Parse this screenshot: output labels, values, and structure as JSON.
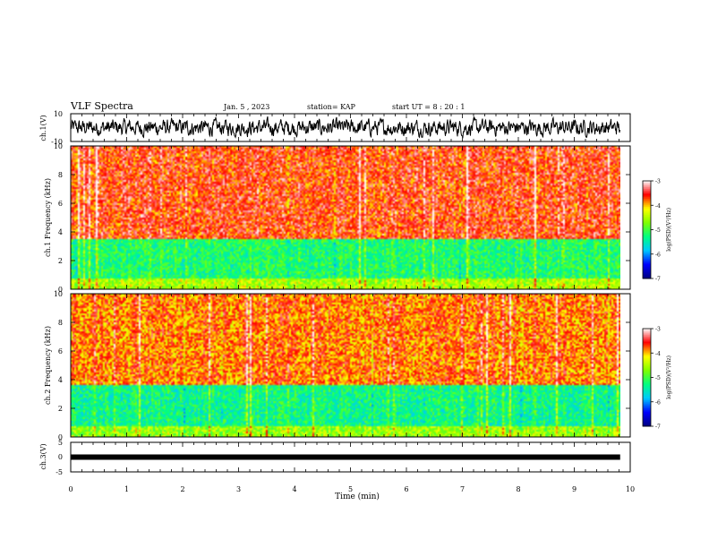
{
  "header": {
    "title": "VLF Spectra",
    "date": "Jan. 5 , 2023",
    "station": "station= KAP",
    "start": "start UT = 8 : 20 : 1"
  },
  "colors": {
    "background": "#ffffff",
    "axis": "#000000",
    "waveform": "#000000",
    "colormap": [
      "#000080",
      "#0000ff",
      "#00c8ff",
      "#00ff80",
      "#80ff00",
      "#ffff00",
      "#ff0000",
      "#ffffff"
    ]
  },
  "colorbar": {
    "label": "log(PSD)(V²/Hz)",
    "ticks": [
      -3,
      -4,
      -5,
      -6,
      -7
    ],
    "range": [
      -7,
      -3
    ]
  },
  "chart_data": [
    {
      "type": "line",
      "ylabel": "ch.1(V)",
      "ytick_labels": [
        "10",
        "-10"
      ],
      "ylim": [
        -10,
        10
      ],
      "xlim": [
        0,
        10
      ],
      "data_end": 9.82,
      "description_level": "noisy waveform oscillating roughly between -7 and 8 V"
    },
    {
      "type": "heatmap",
      "ylabel": "ch.1 Frequency (kHz)",
      "ytick_labels": [
        "0",
        "2",
        "4",
        "6",
        "8",
        "10"
      ],
      "ylim": [
        0,
        10
      ],
      "xlim": [
        0,
        10
      ],
      "data_end": 9.82,
      "zlim": [
        -7,
        -3
      ],
      "bands": [
        {
          "from_khz": 0,
          "to_khz": 0.8,
          "level": -4.5
        },
        {
          "from_khz": 0.8,
          "to_khz": 3.5,
          "level": -5.2
        },
        {
          "from_khz": 3.5,
          "to_khz": 10,
          "level": -3.6
        }
      ]
    },
    {
      "type": "heatmap",
      "ylabel": "ch.2 Frequency (kHz)",
      "ytick_labels": [
        "0",
        "2",
        "4",
        "6",
        "8",
        "10"
      ],
      "ylim": [
        0,
        10
      ],
      "xlim": [
        0,
        10
      ],
      "data_end": 9.82,
      "zlim": [
        -7,
        -3
      ],
      "bands": [
        {
          "from_khz": 0,
          "to_khz": 0.8,
          "level": -4.6
        },
        {
          "from_khz": 0.8,
          "to_khz": 3.6,
          "level": -5.3
        },
        {
          "from_khz": 3.6,
          "to_khz": 10,
          "level": -3.8
        }
      ]
    },
    {
      "type": "line",
      "ylabel": "ch.3(V)",
      "ytick_labels": [
        "5",
        "0",
        "-5"
      ],
      "ylim": [
        -5,
        5
      ],
      "xlim": [
        0,
        10
      ],
      "data_end": 9.82,
      "level": 0
    }
  ],
  "xaxis": {
    "label": "Time (min)",
    "ticks": [
      "0",
      "1",
      "2",
      "3",
      "4",
      "5",
      "6",
      "7",
      "8",
      "9",
      "10"
    ]
  }
}
